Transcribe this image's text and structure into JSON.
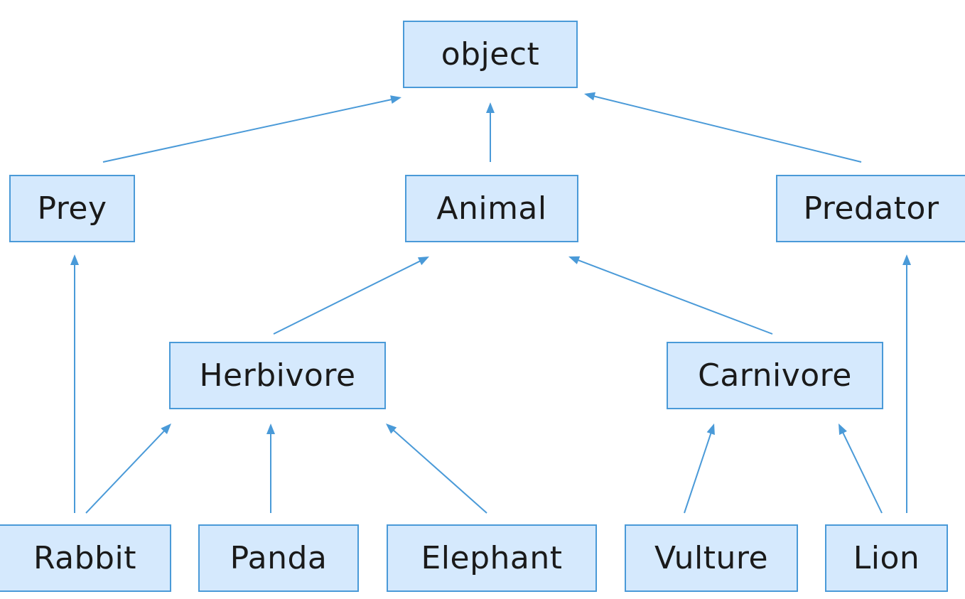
{
  "colors": {
    "node_fill": "#d5e9fd",
    "node_border": "#4a9ad8",
    "edge": "#4a9ad8",
    "text": "#1a1a1a"
  },
  "nodes": {
    "object": "object",
    "prey": "Prey",
    "animal": "Animal",
    "predator": "Predator",
    "herbivore": "Herbivore",
    "carnivore": "Carnivore",
    "rabbit": "Rabbit",
    "panda": "Panda",
    "elephant": "Elephant",
    "vulture": "Vulture",
    "lion": "Lion"
  },
  "edges": [
    {
      "from": "prey",
      "to": "object"
    },
    {
      "from": "animal",
      "to": "object"
    },
    {
      "from": "predator",
      "to": "object"
    },
    {
      "from": "herbivore",
      "to": "animal"
    },
    {
      "from": "carnivore",
      "to": "animal"
    },
    {
      "from": "rabbit",
      "to": "prey"
    },
    {
      "from": "rabbit",
      "to": "herbivore"
    },
    {
      "from": "panda",
      "to": "herbivore"
    },
    {
      "from": "elephant",
      "to": "herbivore"
    },
    {
      "from": "vulture",
      "to": "carnivore"
    },
    {
      "from": "lion",
      "to": "carnivore"
    },
    {
      "from": "lion",
      "to": "predator"
    }
  ]
}
